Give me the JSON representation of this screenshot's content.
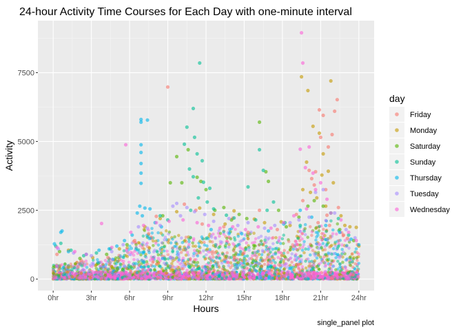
{
  "chart_data": {
    "type": "scatter",
    "title": "24-hour Activity Time Courses for Each Day with one-minute interval",
    "caption": "single_panel plot",
    "xlabel": "Hours",
    "ylabel": "Activity",
    "xlim": [
      -1.2,
      25.2
    ],
    "ylim": [
      -420,
      9390
    ],
    "x_ticks": [
      {
        "value": 0,
        "label": "0hr"
      },
      {
        "value": 3,
        "label": "3hr"
      },
      {
        "value": 6,
        "label": "6hr"
      },
      {
        "value": 9,
        "label": "9hr"
      },
      {
        "value": 12,
        "label": "12hr"
      },
      {
        "value": 15,
        "label": "15hr"
      },
      {
        "value": 18,
        "label": "18hr"
      },
      {
        "value": 21,
        "label": "21hr"
      },
      {
        "value": 24,
        "label": "24hr"
      }
    ],
    "y_ticks": [
      {
        "value": 0,
        "label": "0"
      },
      {
        "value": 2500,
        "label": "2500"
      },
      {
        "value": 5000,
        "label": "5000"
      },
      {
        "value": 7500,
        "label": "7500"
      }
    ],
    "grid": true,
    "legend": {
      "title": "day",
      "placement": "right"
    },
    "series": [
      {
        "name": "Friday",
        "color": "#F8766D",
        "points": [
          [
            9.0,
            6980
          ],
          [
            10.3,
            2720
          ],
          [
            11.2,
            2500
          ],
          [
            8.1,
            2280
          ],
          [
            20.1,
            3950
          ],
          [
            20.6,
            3900
          ],
          [
            20.9,
            6150
          ],
          [
            21.2,
            5950
          ],
          [
            21.0,
            5150
          ],
          [
            21.6,
            4800
          ],
          [
            21.9,
            5250
          ],
          [
            22.3,
            6520
          ],
          [
            22.1,
            6100
          ],
          [
            20.3,
            3650
          ],
          [
            21.4,
            3250
          ],
          [
            22.4,
            2600
          ],
          [
            19.1,
            2350
          ],
          [
            20.8,
            2050
          ],
          [
            21.7,
            1950
          ],
          [
            23.1,
            1480
          ],
          [
            23.9,
            1250
          ],
          [
            0.3,
            900
          ],
          [
            2.2,
            680
          ],
          [
            4.3,
            780
          ],
          [
            13.4,
            1900
          ],
          [
            16.2,
            2500
          ],
          [
            17.6,
            1800
          ],
          [
            14.1,
            2210
          ],
          [
            22.8,
            1600
          ],
          [
            19.6,
            2850
          ],
          [
            20.5,
            3420
          ],
          [
            21.5,
            2320
          ],
          [
            15.3,
            1700
          ],
          [
            11.7,
            2000
          ],
          [
            6.4,
            1400
          ],
          [
            7.5,
            1650
          ]
        ]
      },
      {
        "name": "Monday",
        "color": "#C49A00",
        "points": [
          [
            19.5,
            7350
          ],
          [
            20.0,
            6850
          ],
          [
            21.8,
            7200
          ],
          [
            20.4,
            5550
          ],
          [
            20.9,
            5300
          ],
          [
            21.2,
            4550
          ],
          [
            19.9,
            4250
          ],
          [
            21.6,
            3920
          ],
          [
            22.0,
            3500
          ],
          [
            19.6,
            3250
          ],
          [
            20.7,
            2950
          ],
          [
            21.4,
            2650
          ],
          [
            22.6,
            2300
          ],
          [
            23.3,
            1900
          ],
          [
            23.8,
            1880
          ],
          [
            24.0,
            1200
          ],
          [
            1.2,
            1050
          ],
          [
            3.1,
            780
          ],
          [
            5.2,
            1100
          ],
          [
            8.4,
            2200
          ],
          [
            9.7,
            2450
          ],
          [
            11.5,
            2580
          ],
          [
            12.6,
            2350
          ],
          [
            14.2,
            2480
          ],
          [
            15.8,
            2180
          ],
          [
            16.6,
            2050
          ],
          [
            17.9,
            2080
          ],
          [
            18.6,
            1950
          ],
          [
            20.2,
            3150
          ],
          [
            21.1,
            3780
          ],
          [
            22.9,
            1950
          ],
          [
            13.5,
            2000
          ],
          [
            7.2,
            1900
          ]
        ]
      },
      {
        "name": "Saturday",
        "color": "#53B400",
        "points": [
          [
            9.7,
            4450
          ],
          [
            10.6,
            4700
          ],
          [
            11.3,
            3700
          ],
          [
            10.1,
            3500
          ],
          [
            12.0,
            3250
          ],
          [
            11.6,
            3550
          ],
          [
            16.2,
            5700
          ],
          [
            16.7,
            3900
          ],
          [
            16.9,
            3550
          ],
          [
            17.7,
            2500
          ],
          [
            20.0,
            2650
          ],
          [
            20.5,
            2850
          ],
          [
            21.2,
            2650
          ],
          [
            9.2,
            3500
          ],
          [
            8.6,
            2300
          ],
          [
            13.4,
            2600
          ],
          [
            14.6,
            2350
          ],
          [
            15.2,
            2200
          ],
          [
            0.5,
            1000
          ],
          [
            2.1,
            750
          ],
          [
            4.2,
            900
          ],
          [
            5.8,
            1250
          ],
          [
            22.5,
            1800
          ],
          [
            23.6,
            1400
          ],
          [
            18.3,
            1900
          ],
          [
            19.3,
            2250
          ],
          [
            12.7,
            2500
          ],
          [
            14.0,
            2150
          ]
        ]
      },
      {
        "name": "Sunday",
        "color": "#00C094",
        "points": [
          [
            11.5,
            7850
          ],
          [
            11.0,
            6200
          ],
          [
            10.5,
            5520
          ],
          [
            11.1,
            5150
          ],
          [
            10.3,
            4900
          ],
          [
            11.3,
            4550
          ],
          [
            11.7,
            4300
          ],
          [
            10.7,
            4000
          ],
          [
            11.0,
            3720
          ],
          [
            11.8,
            3520
          ],
          [
            12.3,
            3300
          ],
          [
            11.4,
            2950
          ],
          [
            12.1,
            2800
          ],
          [
            10.8,
            2500
          ],
          [
            13.6,
            2320
          ],
          [
            15.3,
            3350
          ],
          [
            16.2,
            4700
          ],
          [
            16.5,
            3950
          ],
          [
            17.3,
            2800
          ],
          [
            16.8,
            2500
          ],
          [
            14.2,
            2220
          ],
          [
            15.9,
            2150
          ],
          [
            18.2,
            2050
          ],
          [
            19.4,
            1950
          ],
          [
            0.2,
            1200
          ],
          [
            0.6,
            1300
          ],
          [
            1.4,
            1050
          ],
          [
            2.4,
            850
          ],
          [
            3.4,
            950
          ],
          [
            4.5,
            1100
          ],
          [
            22.4,
            2200
          ],
          [
            23.2,
            1600
          ],
          [
            21.8,
            2400
          ],
          [
            9.0,
            2150
          ],
          [
            8.4,
            2300
          ],
          [
            12.6,
            2550
          ]
        ]
      },
      {
        "name": "Thursday",
        "color": "#00B6EB",
        "points": [
          [
            6.9,
            5800
          ],
          [
            6.9,
            5700
          ],
          [
            7.4,
            5780
          ],
          [
            6.9,
            4880
          ],
          [
            6.9,
            4600
          ],
          [
            6.9,
            4200
          ],
          [
            6.9,
            3850
          ],
          [
            6.9,
            3480
          ],
          [
            6.8,
            2650
          ],
          [
            7.2,
            2580
          ],
          [
            7.6,
            2550
          ],
          [
            6.6,
            2400
          ],
          [
            7.0,
            2300
          ],
          [
            5.6,
            1400
          ],
          [
            6.2,
            1600
          ],
          [
            5.0,
            1200
          ],
          [
            0.6,
            1700
          ],
          [
            0.7,
            1750
          ],
          [
            0.1,
            1280
          ],
          [
            1.2,
            1000
          ],
          [
            2.6,
            900
          ],
          [
            3.6,
            1050
          ],
          [
            4.4,
            1100
          ],
          [
            8.0,
            2050
          ],
          [
            8.5,
            1900
          ],
          [
            19.4,
            2500
          ],
          [
            20.3,
            2250
          ],
          [
            21.4,
            1950
          ],
          [
            22.5,
            1700
          ],
          [
            23.4,
            1450
          ],
          [
            24.0,
            1250
          ],
          [
            12.4,
            1800
          ],
          [
            14.8,
            1650
          ],
          [
            16.9,
            1750
          ],
          [
            18.1,
            2000
          ]
        ]
      },
      {
        "name": "Tuesday",
        "color": "#A58AFF",
        "points": [
          [
            9.4,
            2650
          ],
          [
            9.7,
            2750
          ],
          [
            10.5,
            2600
          ],
          [
            11.1,
            2450
          ],
          [
            10.0,
            2300
          ],
          [
            13.8,
            2200
          ],
          [
            15.3,
            2050
          ],
          [
            17.4,
            1950
          ],
          [
            19.3,
            2150
          ],
          [
            20.1,
            2250
          ],
          [
            20.6,
            3150
          ],
          [
            21.2,
            3250
          ],
          [
            22.1,
            2400
          ],
          [
            23.0,
            1800
          ],
          [
            23.7,
            1500
          ],
          [
            0.4,
            1100
          ],
          [
            1.6,
            950
          ],
          [
            3.0,
            850
          ],
          [
            4.6,
            1000
          ],
          [
            5.5,
            1250
          ],
          [
            6.7,
            1900
          ],
          [
            7.4,
            1850
          ],
          [
            8.4,
            1950
          ],
          [
            12.6,
            2100
          ],
          [
            16.6,
            1850
          ],
          [
            18.6,
            2050
          ],
          [
            11.9,
            2350
          ],
          [
            14.5,
            1950
          ]
        ]
      },
      {
        "name": "Wednesday",
        "color": "#FB61D7",
        "points": [
          [
            19.5,
            8950
          ],
          [
            19.6,
            7850
          ],
          [
            5.7,
            4880
          ],
          [
            19.4,
            4720
          ],
          [
            20.1,
            4800
          ],
          [
            19.8,
            4050
          ],
          [
            20.4,
            3850
          ],
          [
            21.0,
            3500
          ],
          [
            20.6,
            3250
          ],
          [
            21.5,
            2900
          ],
          [
            19.9,
            2550
          ],
          [
            21.8,
            2400
          ],
          [
            22.6,
            2150
          ],
          [
            23.2,
            1700
          ],
          [
            23.8,
            1400
          ],
          [
            3.8,
            2020
          ],
          [
            0.3,
            1150
          ],
          [
            1.7,
            1000
          ],
          [
            2.6,
            900
          ],
          [
            4.6,
            1150
          ],
          [
            6.1,
            1700
          ],
          [
            7.1,
            1950
          ],
          [
            8.1,
            2050
          ],
          [
            9.1,
            2100
          ],
          [
            10.2,
            2150
          ],
          [
            11.3,
            2050
          ],
          [
            12.2,
            1950
          ],
          [
            13.1,
            1850
          ],
          [
            14.1,
            1900
          ],
          [
            15.1,
            1800
          ],
          [
            16.1,
            1900
          ],
          [
            17.1,
            1850
          ],
          [
            18.1,
            2050
          ],
          [
            18.9,
            2300
          ]
        ]
      }
    ]
  }
}
